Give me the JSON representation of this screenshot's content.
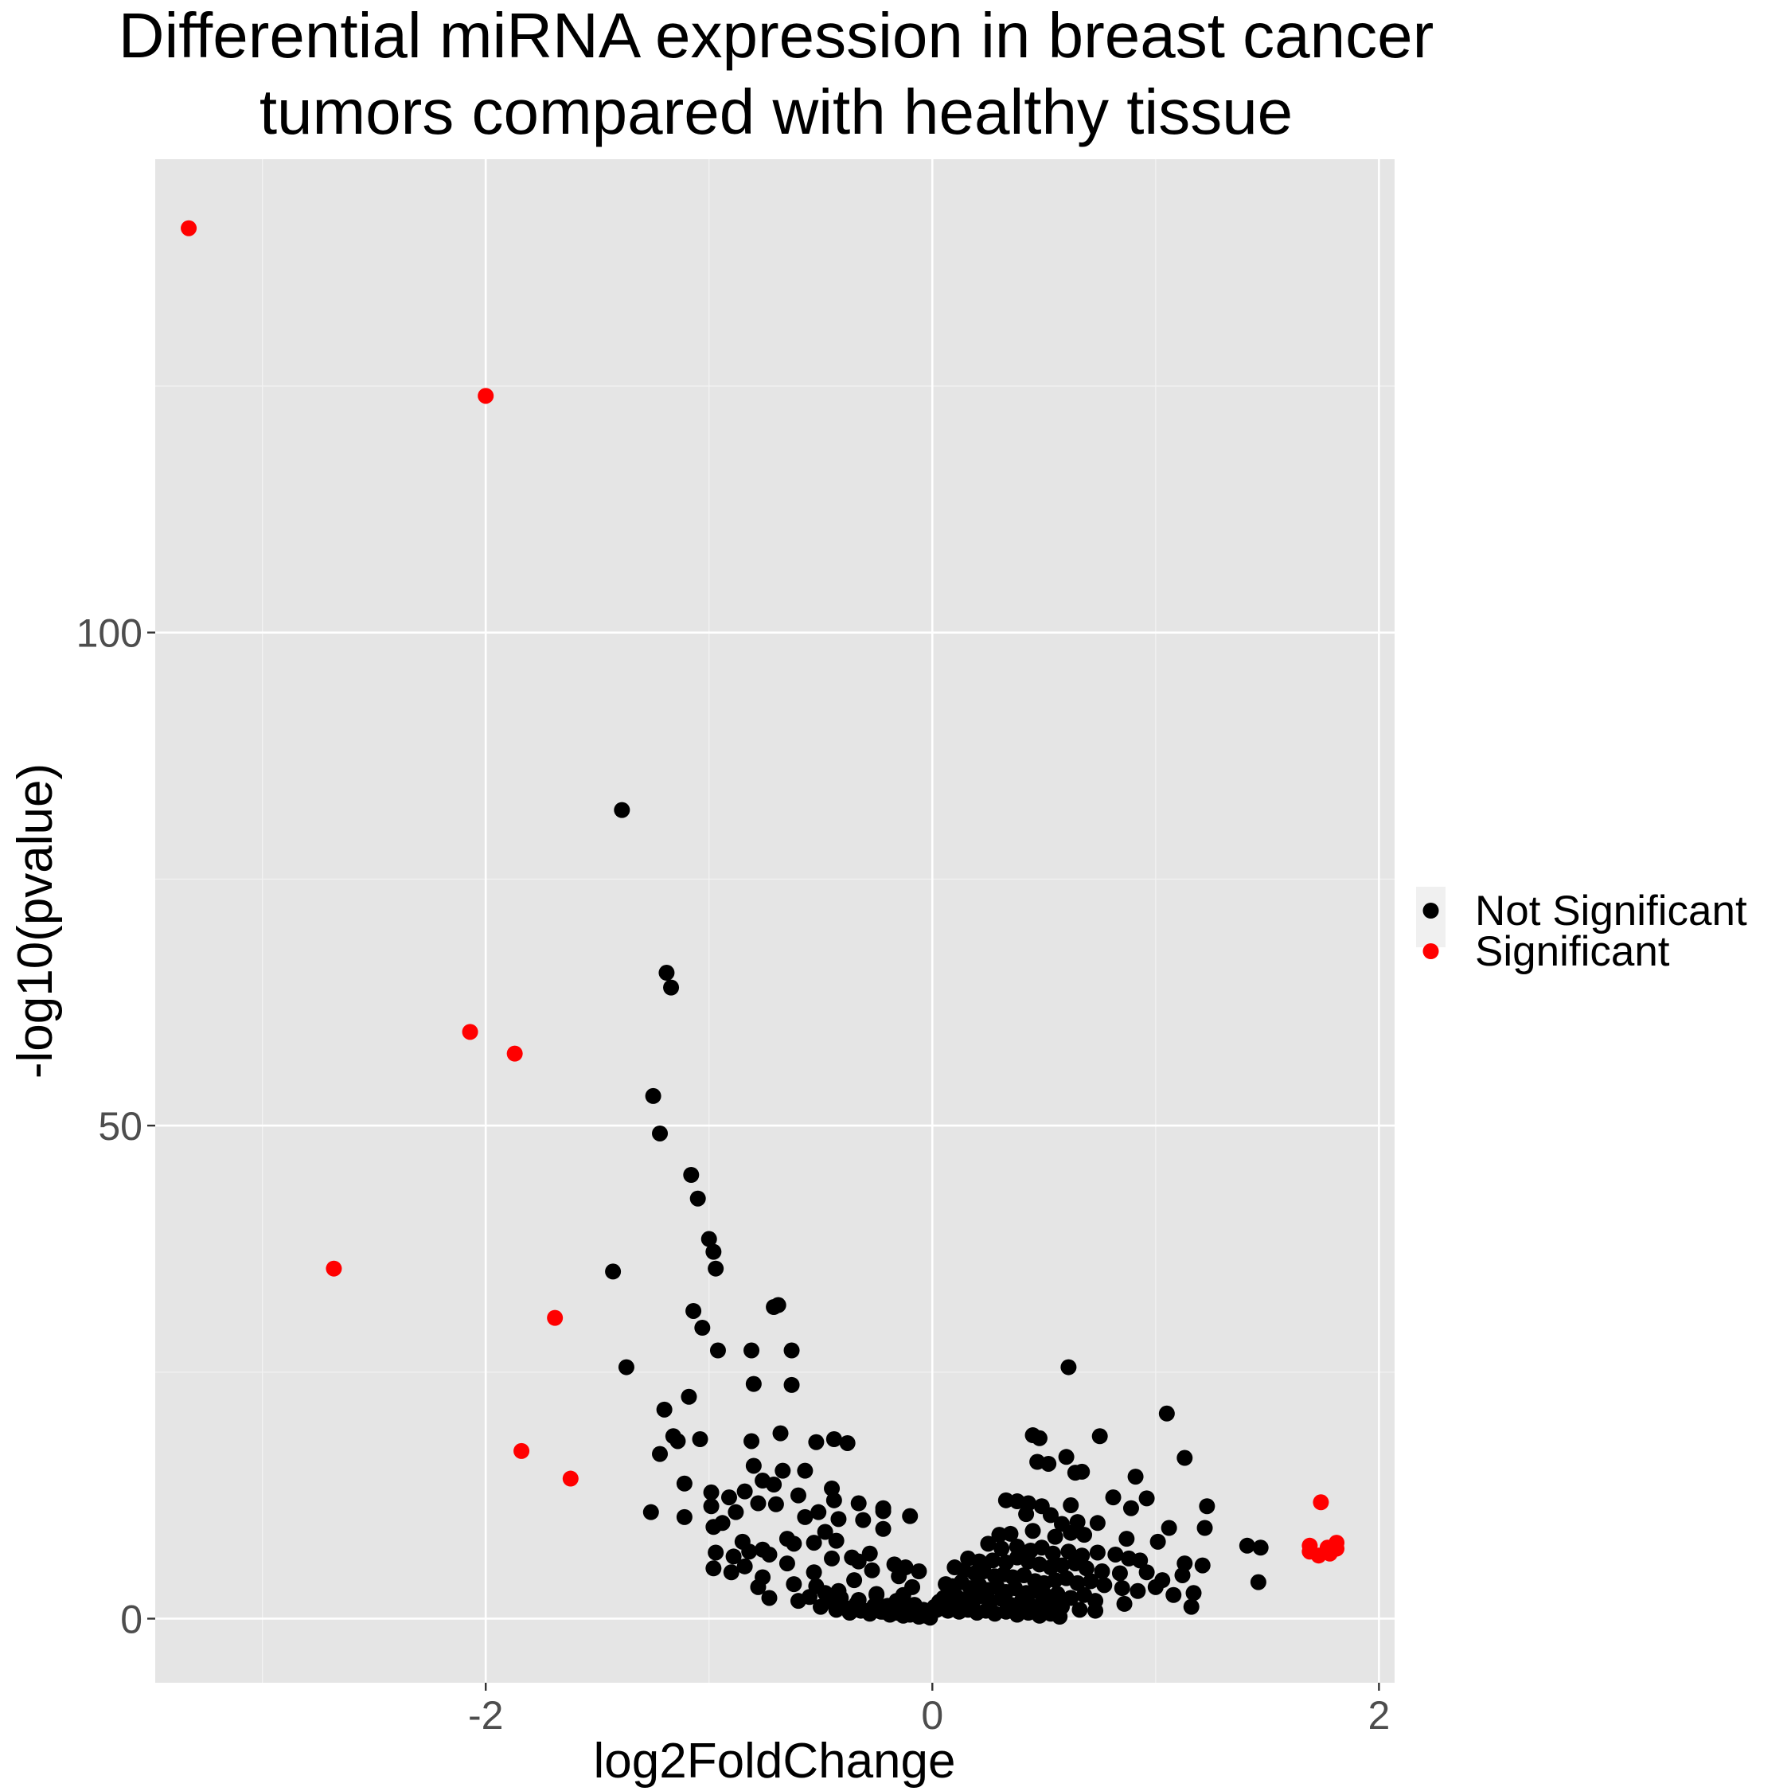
{
  "chart_data": {
    "type": "scatter",
    "title": [
      "Differential miRNA expression in breast cancer",
      "tumors compared with healthy tissue"
    ],
    "xlabel": "log2FoldChange",
    "ylabel": "-log10(pvalue)",
    "xlim": [
      -3.48,
      2.07
    ],
    "ylim": [
      -6.5,
      148
    ],
    "x_ticks": [
      -2,
      0,
      2
    ],
    "x_tick_labels": [
      "-2",
      "0",
      "2"
    ],
    "y_ticks": [
      0,
      50,
      100
    ],
    "y_tick_labels": [
      "0",
      "50",
      "100"
    ],
    "grid": true,
    "legend": {
      "position": "right"
    },
    "series": [
      {
        "name": "Not Significant",
        "color": "#000000",
        "x": [
          -1.39,
          -1.19,
          -1.17,
          -1.25,
          -1.22,
          -1.08,
          -1.05,
          -1.0,
          -0.98,
          -0.97,
          -1.43,
          -1.07,
          -1.03,
          -1.37,
          -0.69,
          -0.71,
          -0.63,
          -0.81,
          -0.8,
          -0.96,
          -0.63,
          -0.68,
          -0.81,
          -1.09,
          -1.2,
          -1.16,
          -1.14,
          -1.04,
          -0.8,
          -0.52,
          -0.44,
          -0.38,
          -0.67,
          -0.57,
          -0.44,
          -1.22,
          -1.11,
          -0.99,
          -0.91,
          -0.84,
          -0.76,
          -0.71,
          -0.6,
          -0.45,
          -0.33,
          -0.22,
          -0.1,
          -1.26,
          -1.11,
          -0.99,
          -0.94,
          -0.88,
          -0.78,
          -0.7,
          -0.57,
          -0.51,
          -0.42,
          -0.31,
          -0.22,
          -0.98,
          -0.85,
          -0.65,
          -0.48,
          -0.22,
          -0.97,
          -0.89,
          -0.82,
          -0.76,
          -0.73,
          -0.62,
          -0.53,
          -0.43,
          -0.36,
          -0.28,
          -0.17,
          -0.12,
          -0.06,
          -0.98,
          -0.9,
          -0.84,
          -0.76,
          -0.65,
          -0.53,
          -0.45,
          -0.33,
          -0.27,
          -0.15,
          -0.09,
          -0.78,
          -0.73,
          -0.62,
          -0.52,
          -0.42,
          -0.35,
          -0.25,
          -0.13,
          -0.6,
          -0.55,
          -0.48,
          -0.41,
          -0.33,
          -0.25,
          -0.2,
          -0.16,
          -0.12,
          -0.08,
          -0.04,
          -0.5,
          -0.45,
          -0.39,
          -0.34,
          -0.3,
          -0.26,
          -0.22,
          -0.18,
          -0.14,
          -0.11,
          -0.07,
          -0.03,
          -0.47,
          -0.43,
          -0.37,
          -0.32,
          -0.28,
          -0.23,
          -0.19,
          -0.16,
          -0.13,
          -0.1,
          -0.06,
          -0.03,
          -0.01,
          0.61,
          1.05,
          0.45,
          0.48,
          0.75,
          1.13,
          0.6,
          0.47,
          0.52,
          0.64,
          0.67,
          0.91,
          0.33,
          0.38,
          0.43,
          0.49,
          0.62,
          0.81,
          0.89,
          0.96,
          1.23,
          0.42,
          0.53,
          0.58,
          0.65,
          0.74,
          1.06,
          1.22,
          0.3,
          0.35,
          0.45,
          0.55,
          0.62,
          0.68,
          0.87,
          1.01,
          1.41,
          1.47,
          0.25,
          0.31,
          0.38,
          0.44,
          0.49,
          0.54,
          0.61,
          0.67,
          0.74,
          0.82,
          0.88,
          0.93,
          1.13,
          1.21,
          0.16,
          0.21,
          0.27,
          0.33,
          0.38,
          0.43,
          0.48,
          0.53,
          0.58,
          0.64,
          0.69,
          0.76,
          0.84,
          0.96,
          1.03,
          1.12,
          1.46,
          0.1,
          0.14,
          0.19,
          0.23,
          0.28,
          0.32,
          0.36,
          0.41,
          0.46,
          0.5,
          0.55,
          0.6,
          0.65,
          0.71,
          0.77,
          0.85,
          0.92,
          1.0,
          1.08,
          1.17,
          0.06,
          0.09,
          0.13,
          0.17,
          0.21,
          0.25,
          0.29,
          0.33,
          0.37,
          0.42,
          0.46,
          0.51,
          0.56,
          0.62,
          0.68,
          0.73,
          0.86,
          1.16,
          0.03,
          0.05,
          0.08,
          0.11,
          0.14,
          0.18,
          0.22,
          0.26,
          0.31,
          0.35,
          0.4,
          0.44,
          0.49,
          0.54,
          0.58,
          0.66,
          0.73,
          0.01,
          0.02,
          0.04,
          0.07,
          0.1,
          0.12,
          0.16,
          0.2,
          0.24,
          0.28,
          0.33,
          0.38,
          0.43,
          0.48,
          0.53,
          0.57
        ],
        "y": [
          82,
          65.5,
          64,
          53,
          49.2,
          45,
          42.6,
          38.5,
          37.2,
          35.5,
          35.2,
          31.2,
          29.5,
          25.5,
          31.8,
          31.6,
          27.2,
          27.2,
          23.8,
          27.2,
          23.7,
          18.8,
          18,
          22.5,
          21.2,
          18.5,
          18,
          18.2,
          15.5,
          17.9,
          18.2,
          17.8,
          15,
          15,
          12,
          16.7,
          13.7,
          12.8,
          12.3,
          12.9,
          14,
          13.6,
          12.5,
          13.2,
          11.7,
          10.9,
          10.4,
          10.8,
          10.3,
          11.4,
          9.7,
          10.8,
          11.7,
          11.6,
          10.3,
          10.8,
          10.1,
          10,
          11.2,
          9.3,
          7.8,
          8.1,
          8.8,
          9.1,
          6.7,
          6.3,
          6.8,
          7,
          6.5,
          7.6,
          7.7,
          7.9,
          6.2,
          6.6,
          5.5,
          5.2,
          4.8,
          5.1,
          4.7,
          5.3,
          4.2,
          5.6,
          4.7,
          6.1,
          5.8,
          4.9,
          4.3,
          3.2,
          3.2,
          2.1,
          3.5,
          3.3,
          2.8,
          3.9,
          2.5,
          2.4,
          1.8,
          2.2,
          2.6,
          2.1,
          1.9,
          2.4,
          1.3,
          1.8,
          1.1,
          1.4,
          0.9,
          1.2,
          1.7,
          1.1,
          1.5,
          0.8,
          1.3,
          0.7,
          1.1,
          0.6,
          0.8,
          0.4,
          0.5,
          2.1,
          0.9,
          0.6,
          0.8,
          0.5,
          0.7,
          0.4,
          0.6,
          0.3,
          0.4,
          0.2,
          0.3,
          0.1,
          25.5,
          20.8,
          18.6,
          18.3,
          18.5,
          16.3,
          16.4,
          15.9,
          15.7,
          14.8,
          14.9,
          14.4,
          12,
          11.9,
          11.7,
          11.4,
          11.5,
          12.3,
          11.2,
          12.2,
          11.4,
          10.6,
          10.5,
          9.6,
          9.8,
          9.7,
          9.2,
          9.2,
          8.5,
          8.6,
          8.9,
          8.3,
          8.7,
          8.5,
          8.1,
          7.8,
          7.4,
          7.2,
          7.6,
          7.1,
          7.3,
          6.9,
          7.2,
          6.6,
          6.8,
          6.4,
          6.7,
          6.5,
          6.1,
          5.9,
          5.6,
          5.4,
          6.1,
          5.8,
          5.9,
          5.7,
          6.2,
          5.8,
          5.5,
          5.2,
          5.4,
          5.6,
          5.1,
          4.8,
          4.6,
          4.7,
          3.9,
          4.4,
          3.7,
          5.2,
          4.9,
          4.6,
          4.8,
          4.3,
          4.5,
          4.2,
          4.4,
          3.8,
          3.6,
          3.9,
          4.1,
          3.6,
          3.8,
          3.4,
          3.1,
          2.8,
          3.2,
          2.4,
          2.6,
          3.5,
          3.3,
          3.7,
          3.1,
          3.4,
          2.9,
          3.2,
          2.7,
          3.1,
          2.6,
          2.8,
          2.3,
          2.5,
          2.1,
          2.4,
          1.8,
          1.5,
          1.2,
          1.7,
          2.1,
          1.8,
          2.2,
          1.9,
          1.6,
          2.3,
          1.7,
          2,
          1.4,
          1.8,
          1.3,
          1.5,
          1.1,
          1.2,
          0.9,
          0.8,
          1.2,
          0.9,
          1.1,
          0.8,
          1,
          0.7,
          0.9,
          0.6,
          0.8,
          0.5,
          0.7,
          0.4,
          0.6,
          0.3,
          0.5,
          0.2
        ]
      },
      {
        "name": "Significant",
        "color": "#ff0000",
        "x": [
          -3.33,
          -2.0,
          -2.07,
          -1.87,
          -2.68,
          -1.69,
          -1.84,
          -1.62,
          1.74,
          1.69,
          1.69,
          1.73,
          1.77,
          1.81,
          1.81,
          1.78
        ],
        "y": [
          141,
          124,
          59.5,
          57.3,
          35.5,
          30.5,
          17,
          14.2,
          11.8,
          7.4,
          6.8,
          6.4,
          7.2,
          7.7,
          7.1,
          6.6
        ]
      }
    ]
  }
}
